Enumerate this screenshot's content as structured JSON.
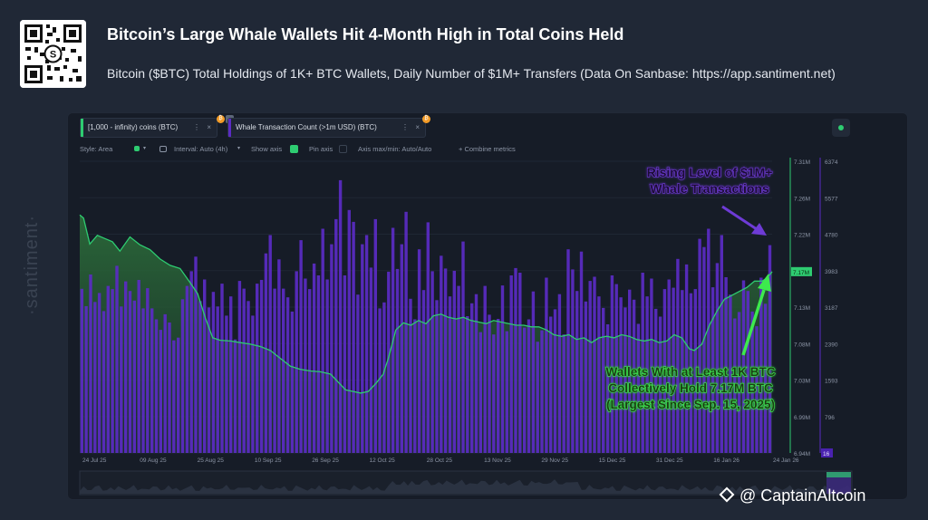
{
  "header": {
    "title": "Bitcoin’s Large Whale Wallets Hit 4-Month High in Total Coins Held",
    "subtitle": "Bitcoin ($BTC) Total Holdings of 1K+ BTC Wallets, Daily Number of $1M+ Transfers (Data On Sanbase: https://app.santiment.net)"
  },
  "toolbar": {
    "metric1": "[1,000 - infinity) coins (BTC)",
    "metric2": "Whale Transaction Count (>1m USD) (BTC)",
    "dots": "⋮",
    "close": "×",
    "style": "Style: Area",
    "interval": "Interval: Auto (4h)",
    "show_axis": "Show axis",
    "pin_axis": "Pin axis",
    "axis_maxmin": "Axis max/min: Auto/Auto",
    "combine": "+  Combine metrics"
  },
  "watermark": "·santiment·",
  "brand": "@ CaptainAltcoin",
  "colors": {
    "holdings": "#2ecc71",
    "whale_bars": "#5b2bc4",
    "annotation_purple": "#6e3bd6",
    "annotation_green": "#3dea4d"
  },
  "chart_data": {
    "type": "bar+area",
    "x_labels": [
      "24 Jul 25",
      "09 Aug 25",
      "25 Aug 25",
      "10 Sep 25",
      "26 Sep 25",
      "12 Oct 25",
      "28 Oct 25",
      "13 Nov 25",
      "29 Nov 25",
      "15 Dec 25",
      "31 Dec 25",
      "16 Jan 26",
      "24 Jan 26"
    ],
    "holdings_axis": {
      "label": "[1,000 - infinity) coins (BTC)",
      "ticks": [
        "7.31M",
        "7.26M",
        "7.22M",
        "7.17M",
        "7.13M",
        "7.08M",
        "7.03M",
        "6.99M",
        "6.94M"
      ],
      "range": [
        6.94,
        7.31
      ],
      "current": "7.17M"
    },
    "whale_axis": {
      "label": "Whale Transaction Count (>1m USD) (BTC)",
      "ticks": [
        "6374",
        "5577",
        "4780",
        "3983",
        "3187",
        "2390",
        "1593",
        "796"
      ],
      "range": [
        0,
        6374
      ],
      "current": "16"
    },
    "holdings_series": [
      [
        0,
        7.242
      ],
      [
        3,
        7.238
      ],
      [
        8,
        7.205
      ],
      [
        14,
        7.216
      ],
      [
        20,
        7.212
      ],
      [
        26,
        7.208
      ],
      [
        32,
        7.196
      ],
      [
        40,
        7.214
      ],
      [
        48,
        7.204
      ],
      [
        56,
        7.198
      ],
      [
        64,
        7.186
      ],
      [
        72,
        7.178
      ],
      [
        80,
        7.174
      ],
      [
        88,
        7.156
      ],
      [
        94,
        7.142
      ],
      [
        100,
        7.112
      ],
      [
        106,
        7.086
      ],
      [
        112,
        7.083
      ],
      [
        120,
        7.082
      ],
      [
        128,
        7.08
      ],
      [
        136,
        7.078
      ],
      [
        144,
        7.075
      ],
      [
        152,
        7.07
      ],
      [
        160,
        7.06
      ],
      [
        168,
        7.05
      ],
      [
        176,
        7.046
      ],
      [
        184,
        7.044
      ],
      [
        192,
        7.043
      ],
      [
        200,
        7.04
      ],
      [
        206,
        7.03
      ],
      [
        212,
        7.02
      ],
      [
        218,
        7.018
      ],
      [
        224,
        7.016
      ],
      [
        230,
        7.018
      ],
      [
        236,
        7.028
      ],
      [
        242,
        7.04
      ],
      [
        246,
        7.06
      ],
      [
        252,
        7.096
      ],
      [
        258,
        7.105
      ],
      [
        264,
        7.102
      ],
      [
        270,
        7.108
      ],
      [
        276,
        7.104
      ],
      [
        282,
        7.114
      ],
      [
        288,
        7.116
      ],
      [
        294,
        7.112
      ],
      [
        300,
        7.11
      ],
      [
        306,
        7.112
      ],
      [
        312,
        7.108
      ],
      [
        318,
        7.106
      ],
      [
        324,
        7.104
      ],
      [
        330,
        7.108
      ],
      [
        336,
        7.106
      ],
      [
        342,
        7.104
      ],
      [
        348,
        7.102
      ],
      [
        354,
        7.102
      ],
      [
        360,
        7.1
      ],
      [
        366,
        7.1
      ],
      [
        372,
        7.096
      ],
      [
        378,
        7.09
      ],
      [
        384,
        7.088
      ],
      [
        390,
        7.09
      ],
      [
        396,
        7.084
      ],
      [
        402,
        7.086
      ],
      [
        408,
        7.08
      ],
      [
        414,
        7.086
      ],
      [
        420,
        7.088
      ],
      [
        426,
        7.086
      ],
      [
        432,
        7.09
      ],
      [
        438,
        7.088
      ],
      [
        444,
        7.084
      ],
      [
        450,
        7.082
      ],
      [
        456,
        7.084
      ],
      [
        462,
        7.08
      ],
      [
        468,
        7.082
      ],
      [
        474,
        7.09
      ],
      [
        480,
        7.086
      ],
      [
        486,
        7.072
      ],
      [
        490,
        7.07
      ],
      [
        496,
        7.078
      ],
      [
        502,
        7.102
      ],
      [
        508,
        7.12
      ],
      [
        514,
        7.135
      ],
      [
        520,
        7.14
      ],
      [
        526,
        7.145
      ],
      [
        532,
        7.15
      ],
      [
        538,
        7.158
      ],
      [
        544,
        7.158
      ],
      [
        548,
        7.162
      ],
      [
        552,
        7.17
      ]
    ],
    "whale_bars": [
      3587,
      3208,
      3900,
      3300,
      3495,
      3100,
      3650,
      3580,
      4090,
      3200,
      3750,
      3540,
      3330,
      3780,
      3160,
      3600,
      3160,
      2920,
      2690,
      3030,
      2850,
      2460,
      2520,
      3360,
      3650,
      3970,
      4290,
      3320,
      3790,
      3180,
      3520,
      3200,
      3700,
      3000,
      3420,
      2480,
      3760,
      3590,
      3320,
      3000,
      3700,
      3780,
      4360,
      4760,
      3590,
      4230,
      3590,
      3400,
      3090,
      3970,
      4650,
      3810,
      3580,
      4140,
      3880,
      4900,
      3790,
      4560,
      5110,
      5960,
      3880,
      5310,
      5050,
      3460,
      4560,
      4760,
      4050,
      5110,
      3160,
      3290,
      3960,
      4920,
      4020,
      4560,
      5270,
      3370,
      2920,
      4450,
      3560,
      5040,
      3970,
      3340,
      4310,
      4030,
      3420,
      3980,
      3650,
      4620,
      2990,
      3270,
      3470,
      2640,
      3650,
      3020,
      2590,
      2930,
      3660,
      2660,
      3880,
      4040,
      3940,
      2740,
      2920,
      3530,
      2430,
      2680,
      3830,
      2980,
      3140,
      3470,
      2590,
      4450,
      4010,
      3540,
      4400,
      3310,
      3760,
      3850,
      3420,
      3170,
      2810,
      3880,
      3690,
      3400,
      3180,
      3570,
      3350,
      2820,
      3940,
      3420,
      3810,
      3150,
      2980,
      3580,
      3790,
      3610,
      4240,
      3560,
      4120,
      3490,
      3580,
      4680,
      4500,
      4900,
      3620,
      4150,
      4760,
      3840,
      3460,
      2940,
      3080,
      3770,
      3540,
      3090,
      2770,
      3830,
      3260,
      4540
    ],
    "annotations": [
      "Rising Level of $1M+ Whale Transactions",
      "Wallets With at Least 1K BTC Collectively Hold 7.17M BTC (Largest Since Sep. 15, 2025)"
    ]
  }
}
